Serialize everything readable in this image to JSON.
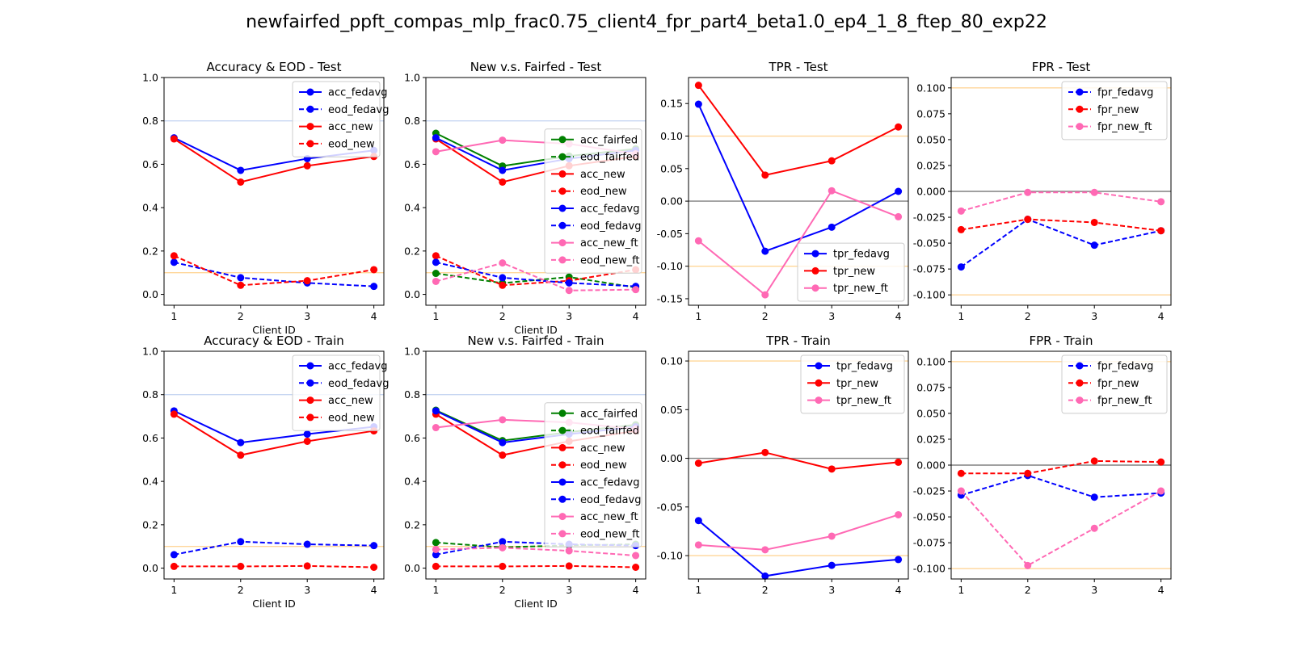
{
  "title": "newfairfed_ppft_compas_mlp_frac0.75_client4_fpr_part4_beta1.0_ep4_1_8_ftep_80_exp22",
  "colors": {
    "fedavg": "#0000ff",
    "new": "#ff0000",
    "fairfed": "#008000",
    "new_ft": "#ff69b4",
    "acc_ref": "#c6d6f2",
    "fair_ref": "#ffd699",
    "zero_ref": "#808080"
  },
  "chart_data": [
    {
      "type": "line",
      "title": "Accuracy & EOD - Test",
      "xlabel": "Client ID",
      "x": [
        1,
        2,
        3,
        4
      ],
      "ylim": [
        -0.05,
        1.0
      ],
      "yticks": [
        "0.0",
        "0.2",
        "0.4",
        "0.6",
        "0.8",
        "1.0"
      ],
      "ref_lines": [
        {
          "y": 0.8,
          "color": "#c6d6f2"
        },
        {
          "y": 0.1,
          "color": "#ffd699"
        }
      ],
      "legend": "top-right",
      "series": [
        {
          "name": "acc_fedavg",
          "color": "#0000ff",
          "dashed": false,
          "values": [
            0.722,
            0.572,
            0.626,
            0.664
          ]
        },
        {
          "name": "eod_fedavg",
          "color": "#0000ff",
          "dashed": true,
          "values": [
            0.148,
            0.077,
            0.053,
            0.037
          ]
        },
        {
          "name": "acc_new",
          "color": "#ff0000",
          "dashed": false,
          "values": [
            0.717,
            0.518,
            0.593,
            0.636
          ]
        },
        {
          "name": "eod_new",
          "color": "#ff0000",
          "dashed": true,
          "values": [
            0.178,
            0.042,
            0.063,
            0.114
          ]
        }
      ]
    },
    {
      "type": "line",
      "title": "New v.s. Fairfed - Test",
      "xlabel": "Client ID",
      "x": [
        1,
        2,
        3,
        4
      ],
      "ylim": [
        -0.05,
        1.0
      ],
      "yticks": [
        "0.0",
        "0.2",
        "0.4",
        "0.6",
        "0.8",
        "1.0"
      ],
      "ref_lines": [
        {
          "y": 0.8,
          "color": "#c6d6f2"
        },
        {
          "y": 0.1,
          "color": "#ffd699"
        }
      ],
      "legend": "right",
      "series": [
        {
          "name": "acc_fairfed",
          "color": "#008000",
          "dashed": false,
          "values": [
            0.743,
            0.592,
            0.638,
            0.671
          ]
        },
        {
          "name": "eod_fairfed",
          "color": "#008000",
          "dashed": true,
          "values": [
            0.097,
            0.052,
            0.08,
            0.032
          ]
        },
        {
          "name": "acc_new",
          "color": "#ff0000",
          "dashed": false,
          "values": [
            0.717,
            0.518,
            0.593,
            0.636
          ]
        },
        {
          "name": "eod_new",
          "color": "#ff0000",
          "dashed": true,
          "values": [
            0.178,
            0.042,
            0.063,
            0.114
          ]
        },
        {
          "name": "acc_fedavg",
          "color": "#0000ff",
          "dashed": false,
          "values": [
            0.722,
            0.572,
            0.626,
            0.664
          ]
        },
        {
          "name": "eod_fedavg",
          "color": "#0000ff",
          "dashed": true,
          "values": [
            0.148,
            0.077,
            0.053,
            0.037
          ]
        },
        {
          "name": "acc_new_ft",
          "color": "#ff69b4",
          "dashed": false,
          "values": [
            0.658,
            0.711,
            0.694,
            0.648
          ]
        },
        {
          "name": "eod_new_ft",
          "color": "#ff69b4",
          "dashed": true,
          "values": [
            0.06,
            0.145,
            0.018,
            0.022
          ]
        }
      ]
    },
    {
      "type": "line",
      "title": "TPR - Test",
      "xlabel": "",
      "x": [
        1,
        2,
        3,
        4
      ],
      "ylim": [
        -0.16,
        0.19
      ],
      "yticks": [
        "0.15",
        "0.10",
        "0.05",
        "0.00",
        "-0.05",
        "-0.10",
        "-0.15"
      ],
      "ref_lines": [
        {
          "y": 0.1,
          "color": "#ffd699"
        },
        {
          "y": -0.1,
          "color": "#ffd699"
        },
        {
          "y": 0.0,
          "color": "#808080"
        }
      ],
      "legend": "lower-right",
      "series": [
        {
          "name": "tpr_fedavg",
          "color": "#0000ff",
          "dashed": false,
          "values": [
            0.149,
            -0.077,
            -0.04,
            0.015
          ]
        },
        {
          "name": "tpr_new",
          "color": "#ff0000",
          "dashed": false,
          "values": [
            0.178,
            0.04,
            0.062,
            0.114
          ]
        },
        {
          "name": "tpr_new_ft",
          "color": "#ff69b4",
          "dashed": false,
          "values": [
            -0.061,
            -0.144,
            0.016,
            -0.024
          ]
        }
      ]
    },
    {
      "type": "line",
      "title": "FPR - Test",
      "xlabel": "",
      "x": [
        1,
        2,
        3,
        4
      ],
      "ylim": [
        -0.11,
        0.11
      ],
      "yticks": [
        "0.100",
        "0.075",
        "0.050",
        "0.025",
        "0.000",
        "-0.025",
        "-0.050",
        "-0.075",
        "-0.100"
      ],
      "ref_lines": [
        {
          "y": 0.1,
          "color": "#ffd699"
        },
        {
          "y": -0.1,
          "color": "#ffd699"
        },
        {
          "y": 0.0,
          "color": "#808080"
        }
      ],
      "legend": "top-right",
      "series": [
        {
          "name": "fpr_fedavg",
          "color": "#0000ff",
          "dashed": true,
          "values": [
            -0.073,
            -0.027,
            -0.052,
            -0.038
          ]
        },
        {
          "name": "fpr_new",
          "color": "#ff0000",
          "dashed": true,
          "values": [
            -0.037,
            -0.027,
            -0.03,
            -0.038
          ]
        },
        {
          "name": "fpr_new_ft",
          "color": "#ff69b4",
          "dashed": true,
          "values": [
            -0.019,
            -0.001,
            -0.001,
            -0.01
          ]
        }
      ]
    },
    {
      "type": "line",
      "title": "Accuracy & EOD - Train",
      "xlabel": "Client ID",
      "x": [
        1,
        2,
        3,
        4
      ],
      "ylim": [
        -0.05,
        1.0
      ],
      "yticks": [
        "0.0",
        "0.2",
        "0.4",
        "0.6",
        "0.8",
        "1.0"
      ],
      "ref_lines": [
        {
          "y": 0.8,
          "color": "#c6d6f2"
        },
        {
          "y": 0.1,
          "color": "#ffd699"
        }
      ],
      "legend": "top-right",
      "series": [
        {
          "name": "acc_fedavg",
          "color": "#0000ff",
          "dashed": false,
          "values": [
            0.725,
            0.579,
            0.618,
            0.652
          ]
        },
        {
          "name": "eod_fedavg",
          "color": "#0000ff",
          "dashed": true,
          "values": [
            0.062,
            0.122,
            0.11,
            0.104
          ]
        },
        {
          "name": "acc_new",
          "color": "#ff0000",
          "dashed": false,
          "values": [
            0.71,
            0.521,
            0.585,
            0.633
          ]
        },
        {
          "name": "eod_new",
          "color": "#ff0000",
          "dashed": true,
          "values": [
            0.008,
            0.008,
            0.01,
            0.004
          ]
        }
      ]
    },
    {
      "type": "line",
      "title": "New v.s. Fairfed - Train",
      "xlabel": "Client ID",
      "x": [
        1,
        2,
        3,
        4
      ],
      "ylim": [
        -0.05,
        1.0
      ],
      "yticks": [
        "0.0",
        "0.2",
        "0.4",
        "0.6",
        "0.8",
        "1.0"
      ],
      "ref_lines": [
        {
          "y": 0.8,
          "color": "#c6d6f2"
        },
        {
          "y": 0.1,
          "color": "#ffd699"
        }
      ],
      "legend": "right",
      "series": [
        {
          "name": "acc_fairfed",
          "color": "#008000",
          "dashed": false,
          "values": [
            0.728,
            0.588,
            0.627,
            0.661
          ]
        },
        {
          "name": "eod_fairfed",
          "color": "#008000",
          "dashed": true,
          "values": [
            0.118,
            0.096,
            0.105,
            0.11
          ]
        },
        {
          "name": "acc_new",
          "color": "#ff0000",
          "dashed": false,
          "values": [
            0.71,
            0.521,
            0.585,
            0.633
          ]
        },
        {
          "name": "eod_new",
          "color": "#ff0000",
          "dashed": true,
          "values": [
            0.008,
            0.008,
            0.01,
            0.004
          ]
        },
        {
          "name": "acc_fedavg",
          "color": "#0000ff",
          "dashed": false,
          "values": [
            0.725,
            0.579,
            0.618,
            0.652
          ]
        },
        {
          "name": "eod_fedavg",
          "color": "#0000ff",
          "dashed": true,
          "values": [
            0.062,
            0.122,
            0.11,
            0.104
          ]
        },
        {
          "name": "acc_new_ft",
          "color": "#ff69b4",
          "dashed": false,
          "values": [
            0.648,
            0.684,
            0.672,
            0.642
          ]
        },
        {
          "name": "eod_new_ft",
          "color": "#ff69b4",
          "dashed": true,
          "values": [
            0.086,
            0.094,
            0.08,
            0.058
          ]
        }
      ]
    },
    {
      "type": "line",
      "title": "TPR - Train",
      "xlabel": "",
      "x": [
        1,
        2,
        3,
        4
      ],
      "ylim": [
        -0.124,
        0.11
      ],
      "yticks": [
        "0.10",
        "0.05",
        "0.00",
        "-0.05",
        "-0.10"
      ],
      "ref_lines": [
        {
          "y": 0.1,
          "color": "#ffd699"
        },
        {
          "y": -0.1,
          "color": "#ffd699"
        },
        {
          "y": 0.0,
          "color": "#808080"
        }
      ],
      "legend": "top-right",
      "series": [
        {
          "name": "tpr_fedavg",
          "color": "#0000ff",
          "dashed": false,
          "values": [
            -0.064,
            -0.121,
            -0.11,
            -0.104
          ]
        },
        {
          "name": "tpr_new",
          "color": "#ff0000",
          "dashed": false,
          "values": [
            -0.005,
            0.006,
            -0.011,
            -0.004
          ]
        },
        {
          "name": "tpr_new_ft",
          "color": "#ff69b4",
          "dashed": false,
          "values": [
            -0.089,
            -0.094,
            -0.08,
            -0.058
          ]
        }
      ]
    },
    {
      "type": "line",
      "title": "FPR - Train",
      "xlabel": "",
      "x": [
        1,
        2,
        3,
        4
      ],
      "ylim": [
        -0.11,
        0.11
      ],
      "yticks": [
        "0.100",
        "0.075",
        "0.050",
        "0.025",
        "0.000",
        "-0.025",
        "-0.050",
        "-0.075",
        "-0.100"
      ],
      "ref_lines": [
        {
          "y": 0.1,
          "color": "#ffd699"
        },
        {
          "y": -0.1,
          "color": "#ffd699"
        },
        {
          "y": 0.0,
          "color": "#808080"
        }
      ],
      "legend": "top-right",
      "series": [
        {
          "name": "fpr_fedavg",
          "color": "#0000ff",
          "dashed": true,
          "values": [
            -0.029,
            -0.01,
            -0.031,
            -0.027
          ]
        },
        {
          "name": "fpr_new",
          "color": "#ff0000",
          "dashed": true,
          "values": [
            -0.008,
            -0.008,
            0.004,
            0.003
          ]
        },
        {
          "name": "fpr_new_ft",
          "color": "#ff69b4",
          "dashed": true,
          "values": [
            -0.025,
            -0.097,
            -0.061,
            -0.025
          ]
        }
      ]
    }
  ]
}
